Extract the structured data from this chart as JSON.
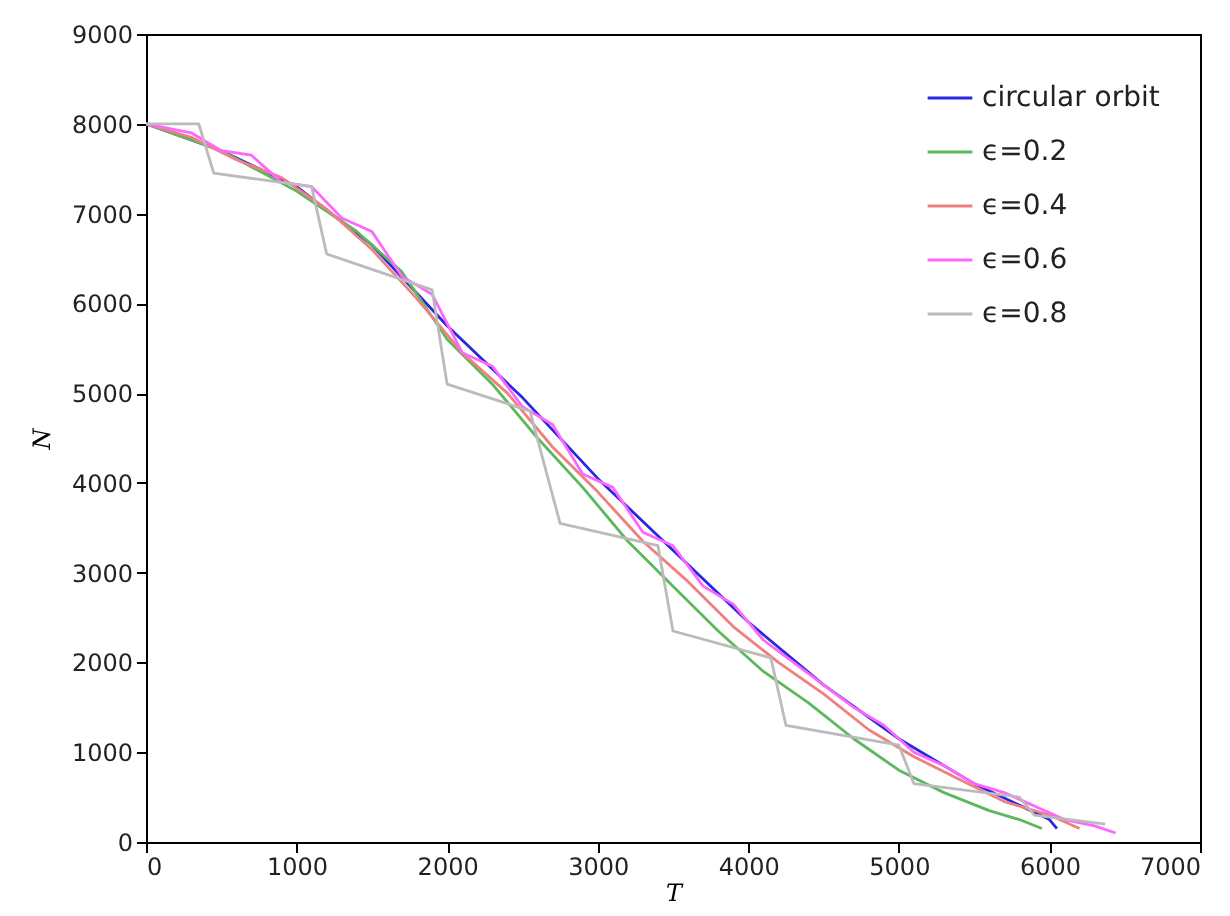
{
  "chart_data": {
    "type": "line",
    "xlabel": "T",
    "ylabel": "N",
    "xlim": [
      0,
      7000
    ],
    "ylim": [
      0,
      9000
    ],
    "xticks": [
      0,
      1000,
      2000,
      3000,
      4000,
      5000,
      6000,
      7000
    ],
    "yticks": [
      0,
      1000,
      2000,
      3000,
      4000,
      5000,
      6000,
      7000,
      8000,
      9000
    ],
    "grid": false,
    "legend": "top right",
    "line_style": "solid",
    "marker": "none",
    "series": [
      {
        "name": "circular orbit",
        "color": "#2828e0",
        "x": [
          0,
          500,
          1000,
          1500,
          2000,
          2500,
          3000,
          3500,
          4000,
          4500,
          5000,
          5500,
          6000,
          6050
        ],
        "values": [
          8000,
          7700,
          7300,
          6650,
          5750,
          4950,
          4050,
          3250,
          2450,
          1750,
          1150,
          650,
          250,
          150
        ]
      },
      {
        "name": "ϵ=0.2",
        "color": "#5cb85c",
        "x": [
          0,
          500,
          1000,
          1400,
          1700,
          2000,
          2300,
          2600,
          2900,
          3200,
          3500,
          3800,
          4100,
          4400,
          4700,
          5000,
          5300,
          5600,
          5800,
          5950
        ],
        "values": [
          8000,
          7700,
          7250,
          6800,
          6350,
          5600,
          5100,
          4500,
          3950,
          3350,
          2850,
          2350,
          1900,
          1550,
          1150,
          800,
          550,
          350,
          250,
          150
        ]
      },
      {
        "name": "ϵ=0.4",
        "color": "#f08080",
        "x": [
          0,
          300,
          600,
          900,
          1200,
          1500,
          1800,
          2100,
          2400,
          2700,
          3000,
          3300,
          3600,
          3900,
          4200,
          4500,
          4800,
          5100,
          5400,
          5700,
          6000,
          6200
        ],
        "values": [
          8000,
          7850,
          7600,
          7400,
          7050,
          6600,
          6050,
          5450,
          5000,
          4400,
          3900,
          3350,
          2900,
          2400,
          2000,
          1650,
          1250,
          950,
          700,
          450,
          300,
          150
        ]
      },
      {
        "name": "ϵ=0.6",
        "color": "#ff66ff",
        "x": [
          0,
          300,
          500,
          700,
          900,
          1100,
          1300,
          1500,
          1700,
          1900,
          2100,
          2300,
          2500,
          2700,
          2900,
          3100,
          3300,
          3500,
          3700,
          3900,
          4100,
          4300,
          4500,
          4700,
          4900,
          5100,
          5300,
          5500,
          5700,
          5900,
          6100,
          6300,
          6440
        ],
        "values": [
          8000,
          7900,
          7700,
          7650,
          7350,
          7300,
          6950,
          6800,
          6300,
          6100,
          5450,
          5300,
          4850,
          4650,
          4100,
          3950,
          3450,
          3300,
          2850,
          2650,
          2250,
          2000,
          1750,
          1500,
          1300,
          1000,
          850,
          650,
          550,
          400,
          250,
          180,
          100
        ]
      },
      {
        "name": "ϵ=0.8",
        "color": "#bbbbbb",
        "x": [
          0,
          350,
          450,
          1100,
          1200,
          1900,
          2000,
          2550,
          2750,
          3400,
          3500,
          4150,
          4250,
          5000,
          5100,
          5800,
          5900,
          6370
        ],
        "values": [
          8000,
          8000,
          7450,
          7300,
          6550,
          6150,
          5100,
          4800,
          3550,
          3300,
          2350,
          2050,
          1300,
          1080,
          650,
          500,
          300,
          200
        ]
      }
    ]
  }
}
